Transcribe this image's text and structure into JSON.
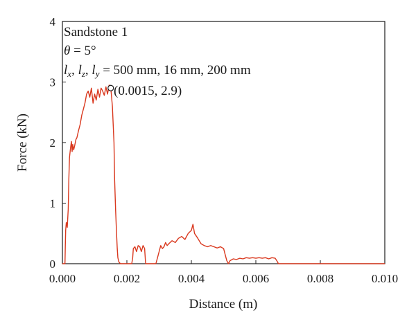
{
  "chart_data": {
    "type": "line",
    "xlabel": "Distance (m)",
    "ylabel": "Force (kN)",
    "xlim": [
      0.0,
      0.01
    ],
    "ylim": [
      0,
      4
    ],
    "xticks": [
      0.0,
      0.002,
      0.004,
      0.006,
      0.008,
      0.01
    ],
    "xtick_labels": [
      "0.000",
      "0.002",
      "0.004",
      "0.006",
      "0.008",
      "0.010"
    ],
    "yticks": [
      0,
      1,
      2,
      3,
      4
    ],
    "ytick_labels": [
      "0",
      "1",
      "2",
      "3",
      "4"
    ],
    "grid": false,
    "line_color": "#d9381e",
    "annotations": {
      "sample": "Sandstone 1",
      "theta_symbol": "θ",
      "theta_value": " = 5°",
      "dims_l": "l",
      "dims_sub_x": "x",
      "dims_sub_z": "z",
      "dims_sub_y": "y",
      "dims_sep": ", ",
      "dims_value": " = 500 mm, 16 mm, 200 mm",
      "peak_label": "(0.0015, 2.9)"
    },
    "peak_point": {
      "x": 0.0015,
      "y": 2.9
    },
    "series": [
      {
        "x": [
          0.0,
          8e-05,
          9e-05,
          0.0001,
          0.00012,
          0.00015,
          0.00018,
          0.0002,
          0.00022,
          0.00025,
          0.00028,
          0.0003,
          0.00032,
          0.00035,
          0.00038,
          0.0004,
          0.00042,
          0.00045,
          0.00048,
          0.0005,
          0.00055,
          0.0006,
          0.00065,
          0.0007,
          0.00075,
          0.0008,
          0.00085,
          0.0009,
          0.00095,
          0.001,
          0.00105,
          0.0011,
          0.00115,
          0.0012,
          0.00125,
          0.0013,
          0.00135,
          0.0014,
          0.00145,
          0.0015,
          0.00155,
          0.0016,
          0.00162,
          0.00165,
          0.00168,
          0.0017,
          0.00172,
          0.00175,
          0.0018,
          0.00185,
          0.002,
          0.00215,
          0.00218,
          0.0022,
          0.00225,
          0.0023,
          0.00235,
          0.0024,
          0.00245,
          0.0025,
          0.00255,
          0.00258,
          0.0026,
          0.0029,
          0.00295,
          0.003,
          0.00305,
          0.0031,
          0.00315,
          0.0032,
          0.00325,
          0.0033,
          0.0034,
          0.0035,
          0.0036,
          0.0037,
          0.0038,
          0.0039,
          0.004,
          0.00405,
          0.0041,
          0.0042,
          0.0043,
          0.0044,
          0.0045,
          0.0046,
          0.0047,
          0.0048,
          0.0049,
          0.005,
          0.00505,
          0.0051,
          0.00515,
          0.0052,
          0.0053,
          0.0054,
          0.0055,
          0.0056,
          0.0057,
          0.0058,
          0.0059,
          0.006,
          0.0061,
          0.0062,
          0.0063,
          0.0064,
          0.0065,
          0.0066,
          0.00665,
          0.0067,
          0.0075,
          0.0085,
          0.0095,
          0.01
        ],
        "y": [
          0.0,
          0.0,
          0.3,
          0.55,
          0.68,
          0.6,
          0.9,
          1.4,
          1.75,
          1.9,
          2.02,
          1.85,
          1.97,
          1.88,
          1.95,
          2.0,
          2.05,
          2.08,
          2.15,
          2.2,
          2.3,
          2.45,
          2.55,
          2.65,
          2.8,
          2.85,
          2.75,
          2.9,
          2.65,
          2.8,
          2.7,
          2.88,
          2.75,
          2.9,
          2.85,
          2.78,
          2.92,
          2.8,
          2.95,
          2.9,
          2.6,
          2.0,
          1.4,
          0.9,
          0.5,
          0.25,
          0.1,
          0.03,
          0.0,
          0.0,
          0.0,
          0.0,
          0.1,
          0.25,
          0.28,
          0.2,
          0.3,
          0.28,
          0.2,
          0.3,
          0.25,
          0.0,
          0.0,
          0.0,
          0.1,
          0.2,
          0.3,
          0.25,
          0.28,
          0.35,
          0.3,
          0.33,
          0.38,
          0.35,
          0.42,
          0.45,
          0.4,
          0.5,
          0.55,
          0.65,
          0.5,
          0.42,
          0.33,
          0.3,
          0.28,
          0.3,
          0.28,
          0.26,
          0.28,
          0.25,
          0.15,
          0.05,
          0.0,
          0.05,
          0.08,
          0.07,
          0.09,
          0.08,
          0.1,
          0.09,
          0.1,
          0.09,
          0.1,
          0.09,
          0.1,
          0.08,
          0.1,
          0.09,
          0.05,
          0.0,
          0.0,
          0.0,
          0.0,
          0.0
        ]
      }
    ]
  }
}
